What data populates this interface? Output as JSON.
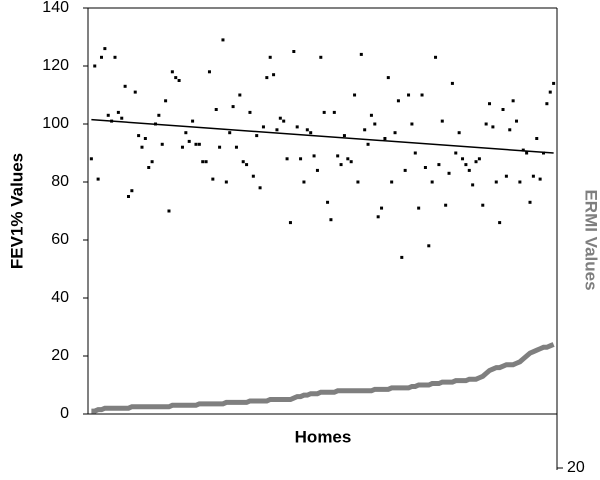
{
  "chart_data": {
    "type": "scatter",
    "x_label": "Homes",
    "y_label": "FEV1% Values",
    "y2_label": "ERMI Values",
    "ylim": [
      0,
      140
    ],
    "yticks": [
      0,
      20,
      40,
      60,
      80,
      100,
      120,
      140
    ],
    "y2lim": [
      20,
      178
    ],
    "y2ticks": [
      20
    ],
    "series": [
      {
        "color": "#000000",
        "values": [
          88,
          120,
          81,
          123,
          126,
          103,
          101,
          123,
          104,
          102,
          113,
          75,
          77,
          111,
          96,
          92,
          95,
          85,
          87,
          100,
          103,
          93,
          108,
          70,
          118,
          116,
          115,
          92,
          97,
          94,
          101,
          93,
          93,
          87,
          87,
          118,
          81,
          105,
          92,
          129,
          80,
          97,
          106,
          92,
          110,
          87,
          86,
          104,
          82,
          96,
          78,
          99,
          116,
          123,
          117,
          98,
          102,
          101,
          88,
          66,
          125,
          99,
          88,
          80,
          98,
          97,
          89,
          84,
          123,
          104,
          73,
          67,
          104,
          89,
          86,
          96,
          88,
          87,
          110,
          80,
          124,
          98,
          93,
          103,
          100,
          68,
          71,
          95,
          116,
          80,
          97,
          108,
          54,
          84,
          110,
          100,
          90,
          71,
          110,
          85,
          58,
          80,
          123,
          86,
          101,
          72,
          83,
          114,
          90,
          97,
          88,
          86,
          84,
          79,
          87,
          88,
          72,
          100,
          107,
          99,
          80,
          66,
          105,
          82,
          98,
          108,
          101,
          80,
          91,
          90,
          73,
          82,
          95,
          81,
          90,
          107,
          111,
          114
        ],
        "trend": [
          101.5,
          90
        ],
        "trend_color": "#000000"
      },
      {
        "color": "#7f7f7f",
        "values": [
          1,
          1,
          1.5,
          1.5,
          2,
          2,
          2,
          2,
          2,
          2,
          2,
          2,
          2.5,
          2.5,
          2.5,
          2.5,
          2.5,
          2.5,
          2.5,
          2.5,
          2.5,
          2.5,
          2.5,
          2.5,
          3,
          3,
          3,
          3,
          3,
          3,
          3,
          3,
          3.5,
          3.5,
          3.5,
          3.5,
          3.5,
          3.5,
          3.5,
          3.5,
          4,
          4,
          4,
          4,
          4,
          4,
          4,
          4.5,
          4.5,
          4.5,
          4.5,
          4.5,
          4.5,
          5,
          5,
          5,
          5,
          5,
          5,
          5,
          5.5,
          6,
          6,
          6.5,
          6.5,
          7,
          7,
          7,
          7.5,
          7.5,
          7.5,
          7.5,
          7.5,
          8,
          8,
          8,
          8,
          8,
          8,
          8,
          8,
          8,
          8,
          8,
          8.5,
          8.5,
          8.5,
          8.5,
          8.5,
          9,
          9,
          9,
          9,
          9,
          9,
          9.5,
          9.5,
          10,
          10,
          10,
          10,
          10.5,
          10.5,
          10.5,
          11,
          11,
          11,
          11,
          11.5,
          11.5,
          11.5,
          11.5,
          12,
          12,
          12,
          12.5,
          13,
          14,
          15,
          15.5,
          16,
          16,
          16.5,
          17,
          17,
          17,
          17.5,
          18,
          19,
          20,
          21,
          21.5,
          22,
          22.5,
          23,
          23,
          23.5,
          24
        ]
      }
    ]
  }
}
